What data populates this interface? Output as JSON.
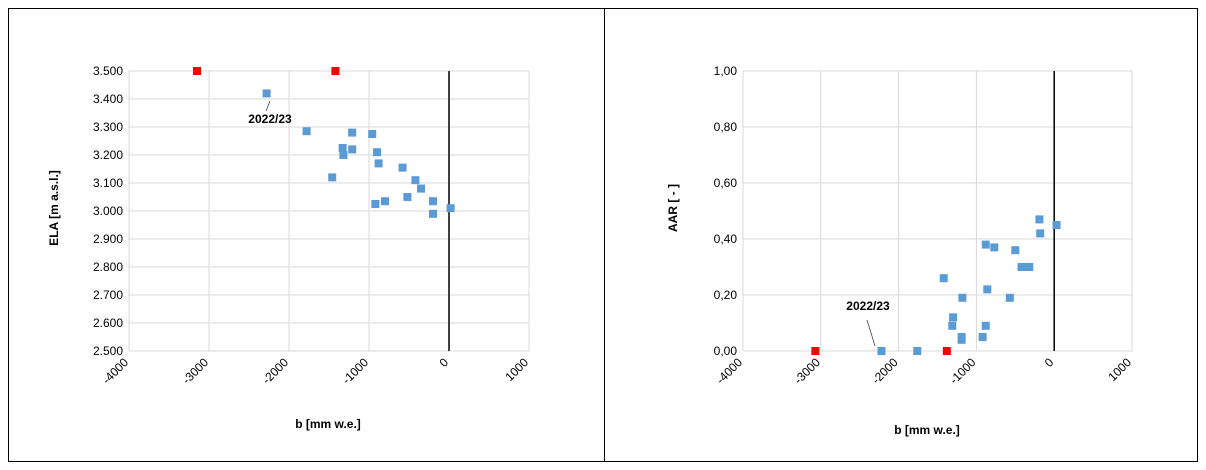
{
  "chart_data": [
    {
      "type": "scatter",
      "title": "",
      "xlabel": "b [mm w.e.]",
      "ylabel": "ELA [m a.s.l.]",
      "xlim": [
        -4000,
        1000
      ],
      "ylim": [
        2500,
        3500
      ],
      "xticks": [
        -4000,
        -3000,
        -2000,
        -1000,
        0,
        1000
      ],
      "xtick_labels": [
        "-4000",
        "-3000",
        "-2000",
        "-1000",
        "0",
        "1000"
      ],
      "yticks": [
        2500,
        2600,
        2700,
        2800,
        2900,
        3000,
        3100,
        3200,
        3300,
        3400,
        3500
      ],
      "ytick_labels": [
        "2.500",
        "2.600",
        "2.700",
        "2.800",
        "2.900",
        "3.000",
        "3.100",
        "3.200",
        "3.300",
        "3.400",
        "3.500"
      ],
      "grid": true,
      "series": [
        {
          "color": "#5b9bd5",
          "points": [
            [
              -2280,
              3420
            ],
            [
              -1780,
              3285
            ],
            [
              -1210,
              3280
            ],
            [
              -960,
              3275
            ],
            [
              -1330,
              3225
            ],
            [
              -1210,
              3220
            ],
            [
              -1320,
              3200
            ],
            [
              -900,
              3210
            ],
            [
              -880,
              3170
            ],
            [
              -580,
              3155
            ],
            [
              -420,
              3110
            ],
            [
              -350,
              3080
            ],
            [
              -1460,
              3120
            ],
            [
              -520,
              3050
            ],
            [
              -800,
              3035
            ],
            [
              -920,
              3025
            ],
            [
              -200,
              3035
            ],
            [
              -200,
              2990
            ],
            [
              20,
              3010
            ]
          ]
        },
        {
          "color": "#ff0000",
          "points": [
            [
              -3150,
              3500
            ],
            [
              -1420,
              3500
            ]
          ]
        }
      ],
      "annotation": {
        "text": "2022/23",
        "point": [
          -2280,
          3420
        ]
      },
      "zero_line_x": 0
    },
    {
      "type": "scatter",
      "title": "",
      "xlabel": "b [mm w.e.]",
      "ylabel": "AAR [ - ]",
      "xlim": [
        -4000,
        1000
      ],
      "ylim": [
        0,
        1
      ],
      "xticks": [
        -4000,
        -3000,
        -2000,
        -1000,
        0,
        1000
      ],
      "xtick_labels": [
        "-4000",
        "-3000",
        "-2000",
        "-1000",
        "0",
        "1000"
      ],
      "yticks": [
        0,
        0.2,
        0.4,
        0.6,
        0.8,
        1.0
      ],
      "ytick_labels": [
        "0,00",
        "0,20",
        "0,40",
        "0,60",
        "0,80",
        "1,00"
      ],
      "grid": true,
      "series": [
        {
          "color": "#5b9bd5",
          "points": [
            [
              -2220,
              0.0
            ],
            [
              -1760,
              0.0
            ],
            [
              -1420,
              0.26
            ],
            [
              -1300,
              0.12
            ],
            [
              -1310,
              0.09
            ],
            [
              -1180,
              0.19
            ],
            [
              -1190,
              0.05
            ],
            [
              -1190,
              0.04
            ],
            [
              -920,
              0.05
            ],
            [
              -880,
              0.09
            ],
            [
              -880,
              0.38
            ],
            [
              -860,
              0.22
            ],
            [
              -770,
              0.37
            ],
            [
              -570,
              0.19
            ],
            [
              -500,
              0.36
            ],
            [
              -420,
              0.3
            ],
            [
              -320,
              0.3
            ],
            [
              -190,
              0.47
            ],
            [
              -180,
              0.42
            ],
            [
              30,
              0.45
            ]
          ]
        },
        {
          "color": "#ff0000",
          "points": [
            [
              -3070,
              0.0
            ],
            [
              -1380,
              0.0
            ]
          ]
        }
      ],
      "annotation": {
        "text": "2022/23",
        "point": [
          -2220,
          0.0
        ]
      },
      "zero_line_x": 0
    }
  ]
}
